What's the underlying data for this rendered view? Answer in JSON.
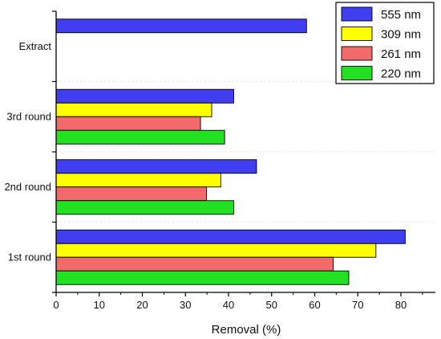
{
  "chart_data": {
    "type": "bar",
    "orientation": "horizontal",
    "title": "",
    "xlabel": "Removal (%)",
    "ylabel": "",
    "xlim": [
      0,
      88
    ],
    "xticks": [
      0,
      10,
      20,
      30,
      40,
      50,
      60,
      70,
      80
    ],
    "categories": [
      "1st round",
      "2nd round",
      "3rd round",
      "Extract"
    ],
    "series": [
      {
        "name": "555 nm",
        "color": "#3f3fef",
        "values": [
          81,
          46.5,
          41.2,
          58.1
        ]
      },
      {
        "name": "309 nm",
        "color": "#ffff00",
        "values": [
          74.2,
          38.2,
          36.1,
          null
        ]
      },
      {
        "name": "261 nm",
        "color": "#f26a6a",
        "values": [
          64.3,
          34.9,
          33.5,
          null
        ]
      },
      {
        "name": "220 nm",
        "color": "#22e022",
        "values": [
          67.9,
          41.2,
          39.1,
          null
        ]
      }
    ],
    "legend_position": "top-right",
    "grid": false
  }
}
